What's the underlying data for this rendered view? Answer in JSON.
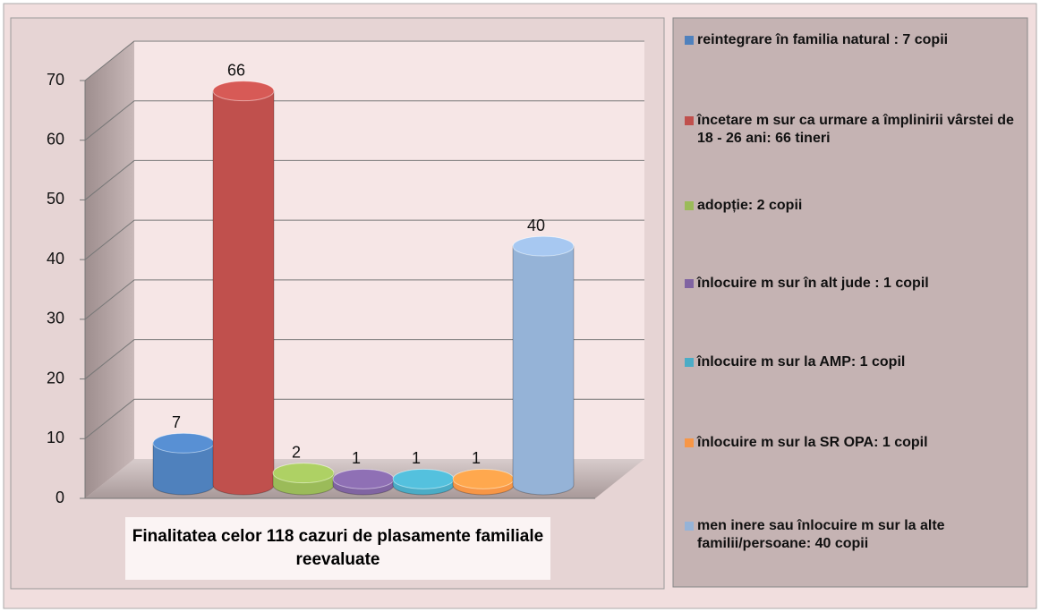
{
  "chart_data": {
    "type": "bar",
    "title": "Finalitatea celor 118 cazuri de plasamente familiale reevaluate",
    "categories": [
      "reintegrare în familia natural  : 7 copii",
      "încetare m sur  ca urmare a împlinirii vârstei de 18 - 26 ani: 66 tineri",
      "adopție: 2 copii",
      "înlocuire m sur  în alt jude : 1 copil",
      "înlocuire m sur  la AMP: 1 copil",
      "înlocuire m sur  la SR OPA: 1 copil",
      "men inere sau înlocuire m sur  la alte familii/persoane: 40 copii"
    ],
    "values": [
      7,
      66,
      2,
      1,
      1,
      1,
      40
    ],
    "colors": [
      "#4f81bd",
      "#c0504d",
      "#9bbb59",
      "#8064a2",
      "#4bacc6",
      "#f79646",
      "#95b3d7"
    ],
    "ylim": [
      0,
      70
    ],
    "yticks": [
      0,
      10,
      20,
      30,
      40,
      50,
      60,
      70
    ],
    "grid": true,
    "legend": "right"
  }
}
